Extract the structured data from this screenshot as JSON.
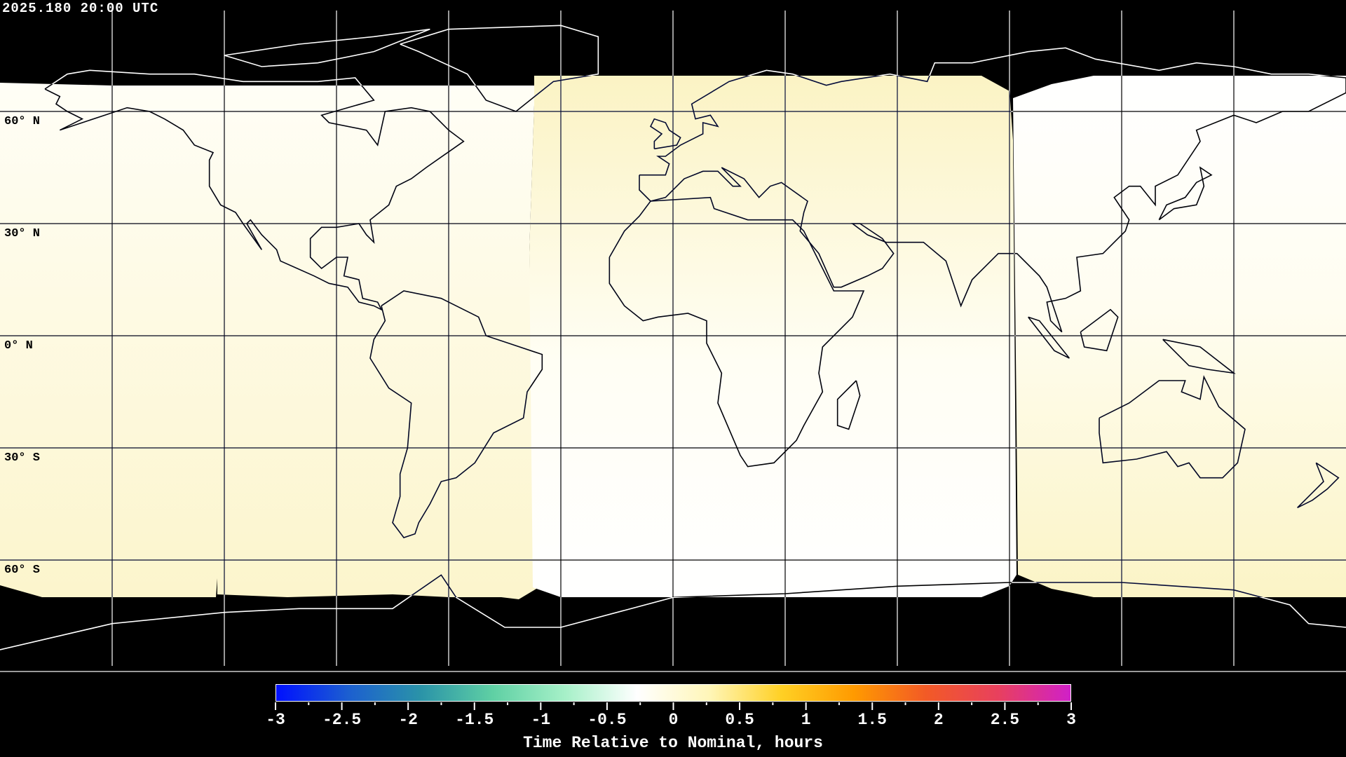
{
  "header": {
    "timestamp": "2025.180 20:00 UTC"
  },
  "map": {
    "projection": "equirectangular",
    "latitude_labels": [
      "60° N",
      "30° N",
      "0° N",
      "30° S",
      "60° S"
    ],
    "colors": {
      "night": "#000000",
      "positive_small": "#fcf6cc",
      "near_zero": "#ffffff"
    }
  },
  "colorbar": {
    "title": "Time Relative to Nominal, hours",
    "range": [
      -3,
      3
    ],
    "tick_labels": [
      "-3",
      "-2.5",
      "-2",
      "-1.5",
      "-1",
      "-0.5",
      "0",
      "0.5",
      "1",
      "1.5",
      "2",
      "2.5",
      "3"
    ],
    "colors": [
      "#0010ff",
      "#1c5fd0",
      "#2a93a8",
      "#5fd0a4",
      "#a6f0c8",
      "#ffffff",
      "#fff6b8",
      "#ffd024",
      "#ff9a00",
      "#f25a26",
      "#e8405e",
      "#d020c8"
    ]
  }
}
